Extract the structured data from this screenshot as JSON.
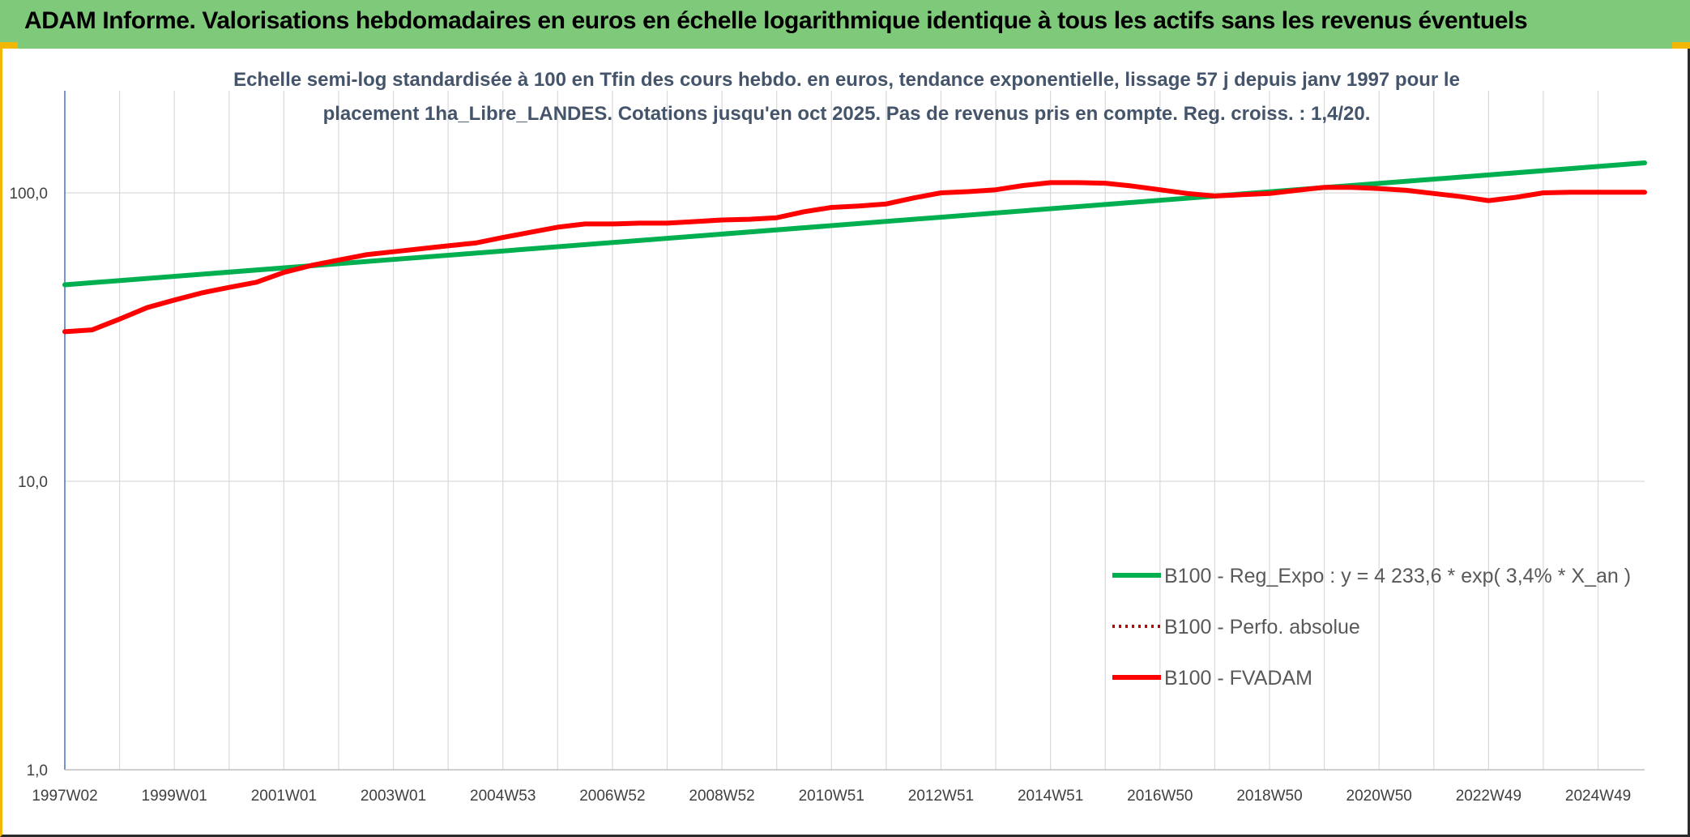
{
  "header": {
    "title": "ADAM Informe. Valorisations hebdomadaires en euros en échelle logarithmique identique à tous les actifs sans les revenus éventuels"
  },
  "colors": {
    "header_bg": "#7fc97a",
    "accent_border": "#f2b705",
    "reg_expo": "#00b050",
    "fvadam": "#ff0000",
    "perfo_absolue": "#c00000",
    "axis_text": "#404040",
    "subtitle": "#44546a",
    "grid": "#d9d9d9"
  },
  "chart_data": {
    "type": "line",
    "title_lines": [
      "Echelle semi-log standardisée à 100 en Tfin des cours hebdo. en euros, tendance exponentielle, lissage 57 j depuis janv 1997 pour le",
      "placement 1ha_Libre_LANDES. Cotations jusqu'en oct 2025. Pas de revenus pris en compte. Reg. croiss. : 1,4/20."
    ],
    "yscale": "log",
    "ylim": [
      1,
      200
    ],
    "ytick_values": [
      1,
      10,
      100
    ],
    "ytick_labels": [
      "1,0",
      "10,0",
      "100,0"
    ],
    "xlim": [
      1997.0,
      2025.85
    ],
    "xtick_values": [
      1997.0,
      1999.0,
      2001.0,
      2003.0,
      2005.0,
      2007.0,
      2009.0,
      2011.0,
      2013.0,
      2015.0,
      2017.0,
      2019.0,
      2021.0,
      2023.0,
      2025.0
    ],
    "xtick_labels": [
      "1997W02",
      "1999W01",
      "2001W01",
      "2003W01",
      "2004W53",
      "2006W52",
      "2008W52",
      "2010W51",
      "2012W51",
      "2014W51",
      "2016W50",
      "2018W50",
      "2020W50",
      "2022W49",
      "2024W49"
    ],
    "grid": true,
    "legend_position": "right",
    "series": [
      {
        "name": "B100 - Reg_Expo : y = 4 233,6 * exp( 3,4% *  X_an )",
        "color": "#00b050",
        "style": "solid",
        "x": [
          1997.0,
          2025.85
        ],
        "y": [
          48,
          127
        ]
      },
      {
        "name": "B100 - Perfo. absolue",
        "color": "#c00000",
        "style": "dotted",
        "x": [],
        "y": []
      },
      {
        "name": "B100 - FVADAM",
        "color": "#ff0000",
        "style": "solid",
        "x": [
          1997.0,
          1997.5,
          1998.0,
          1998.5,
          1999.0,
          1999.5,
          2000.0,
          2000.5,
          2001.0,
          2001.5,
          2002.0,
          2002.5,
          2003.0,
          2003.5,
          2004.0,
          2004.5,
          2005.0,
          2005.5,
          2006.0,
          2006.5,
          2007.0,
          2007.5,
          2008.0,
          2008.5,
          2009.0,
          2009.5,
          2010.0,
          2010.5,
          2011.0,
          2011.5,
          2012.0,
          2012.5,
          2013.0,
          2013.5,
          2014.0,
          2014.5,
          2015.0,
          2015.5,
          2016.0,
          2016.5,
          2017.0,
          2017.5,
          2018.0,
          2018.5,
          2019.0,
          2019.5,
          2020.0,
          2020.5,
          2021.0,
          2021.5,
          2022.0,
          2022.5,
          2023.0,
          2023.5,
          2024.0,
          2024.5,
          2025.0,
          2025.5,
          2025.85
        ],
        "y": [
          33,
          33.5,
          36.5,
          40,
          42.5,
          45,
          47,
          49,
          53,
          56,
          58.5,
          61,
          62.5,
          64,
          65.5,
          67,
          70,
          73,
          76,
          78,
          78,
          78.5,
          78.5,
          79.5,
          80.5,
          81,
          82,
          86,
          89,
          90,
          91.5,
          96,
          100,
          101,
          102.5,
          106,
          108.5,
          108.5,
          108,
          105.5,
          102.5,
          99.5,
          97.5,
          98.5,
          99.5,
          102,
          104.5,
          104.5,
          103.5,
          102,
          99.5,
          97,
          94,
          96.5,
          100,
          100.5,
          100.5,
          100.5,
          100.5
        ]
      }
    ]
  }
}
